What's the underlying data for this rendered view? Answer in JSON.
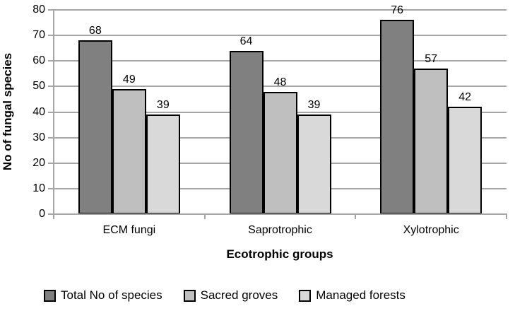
{
  "chart_data": {
    "type": "bar",
    "title": "",
    "categories": [
      "ECM fungi",
      "Saprotrophic",
      "Xylotrophic"
    ],
    "series": [
      {
        "name": "Total No of species",
        "values": [
          68,
          64,
          76
        ],
        "color": "#808080"
      },
      {
        "name": "Sacred groves",
        "values": [
          49,
          48,
          57
        ],
        "color": "#BFBFBF"
      },
      {
        "name": "Managed forests",
        "values": [
          39,
          39,
          42
        ],
        "color": "#D9D9D9"
      }
    ],
    "xlabel": "Ecotrophic groups",
    "ylabel": "No of fungal species",
    "ylim": [
      0,
      80
    ],
    "yticks": [
      0,
      10,
      20,
      30,
      40,
      50,
      60,
      70,
      80
    ],
    "grid": true,
    "legend_position": "bottom",
    "bar_border_color": "#000000",
    "gridline_color": "#A6A6A6",
    "axis_color": "#A6A6A6",
    "background_color": "#FFFFFF"
  }
}
